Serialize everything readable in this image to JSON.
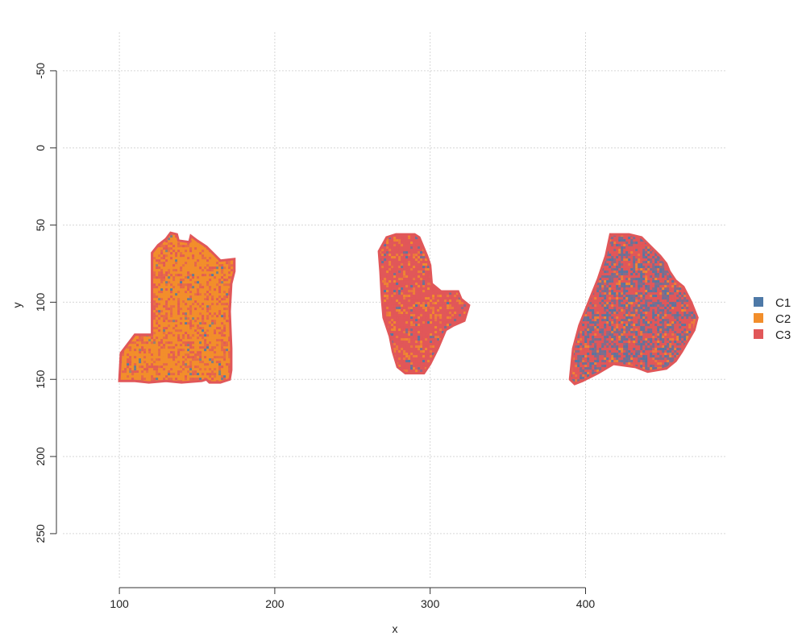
{
  "chart_data": {
    "type": "scatter",
    "xlabel": "x",
    "ylabel": "y",
    "xlim": [
      60,
      490
    ],
    "ylim": [
      -75,
      285
    ],
    "y_inverted": true,
    "x_ticks": [
      100,
      200,
      300,
      400
    ],
    "y_ticks": [
      -50,
      0,
      50,
      100,
      150,
      200,
      250
    ],
    "grid": true,
    "legend_position": "right",
    "series": [
      {
        "name": "C1",
        "color": "#4e79a7"
      },
      {
        "name": "C2",
        "color": "#f28e2b"
      },
      {
        "name": "C3",
        "color": "#e15759"
      }
    ],
    "regions": [
      {
        "outline": [
          [
            100,
            151
          ],
          [
            101,
            133
          ],
          [
            110,
            121
          ],
          [
            121,
            121
          ],
          [
            121,
            68
          ],
          [
            125,
            63
          ],
          [
            130,
            59
          ],
          [
            133,
            55
          ],
          [
            137,
            56
          ],
          [
            138,
            60
          ],
          [
            145,
            61
          ],
          [
            146,
            57
          ],
          [
            150,
            60
          ],
          [
            156,
            64
          ],
          [
            160,
            68
          ],
          [
            165,
            73
          ],
          [
            174,
            72
          ],
          [
            174,
            80
          ],
          [
            172,
            88
          ],
          [
            171,
            106
          ],
          [
            172,
            130
          ],
          [
            172,
            144
          ],
          [
            171,
            150
          ],
          [
            168,
            151
          ],
          [
            165,
            152
          ],
          [
            158,
            152
          ],
          [
            156,
            150
          ],
          [
            153,
            151
          ],
          [
            140,
            152
          ],
          [
            130,
            151
          ],
          [
            119,
            152
          ],
          [
            110,
            151
          ]
        ],
        "mix": {
          "C1": 0.03,
          "C2": 0.67,
          "C3": 0.3
        }
      },
      {
        "outline": [
          [
            268,
            80
          ],
          [
            267,
            67
          ],
          [
            272,
            58
          ],
          [
            278,
            56
          ],
          [
            290,
            56
          ],
          [
            293,
            58
          ],
          [
            298,
            70
          ],
          [
            300,
            76
          ],
          [
            301,
            88
          ],
          [
            307,
            93
          ],
          [
            318,
            93
          ],
          [
            320,
            98
          ],
          [
            325,
            102
          ],
          [
            322,
            112
          ],
          [
            315,
            115
          ],
          [
            310,
            118
          ],
          [
            305,
            130
          ],
          [
            300,
            140
          ],
          [
            296,
            146
          ],
          [
            284,
            146
          ],
          [
            279,
            142
          ],
          [
            276,
            132
          ],
          [
            274,
            122
          ],
          [
            270,
            110
          ],
          [
            269,
            98
          ]
        ],
        "mix": {
          "C1": 0.05,
          "C2": 0.2,
          "C3": 0.75
        }
      },
      {
        "outline": [
          [
            390,
            150
          ],
          [
            392,
            130
          ],
          [
            396,
            115
          ],
          [
            402,
            100
          ],
          [
            408,
            85
          ],
          [
            413,
            70
          ],
          [
            416,
            56
          ],
          [
            428,
            56
          ],
          [
            436,
            58
          ],
          [
            442,
            64
          ],
          [
            448,
            70
          ],
          [
            452,
            75
          ],
          [
            454,
            80
          ],
          [
            458,
            86
          ],
          [
            463,
            90
          ],
          [
            468,
            100
          ],
          [
            472,
            110
          ],
          [
            470,
            118
          ],
          [
            466,
            125
          ],
          [
            462,
            132
          ],
          [
            458,
            138
          ],
          [
            452,
            143
          ],
          [
            440,
            145
          ],
          [
            432,
            142
          ],
          [
            418,
            140
          ],
          [
            408,
            146
          ],
          [
            398,
            151
          ],
          [
            393,
            153
          ]
        ],
        "mix": {
          "C1": 0.4,
          "C2": 0.1,
          "C3": 0.5
        }
      }
    ]
  }
}
